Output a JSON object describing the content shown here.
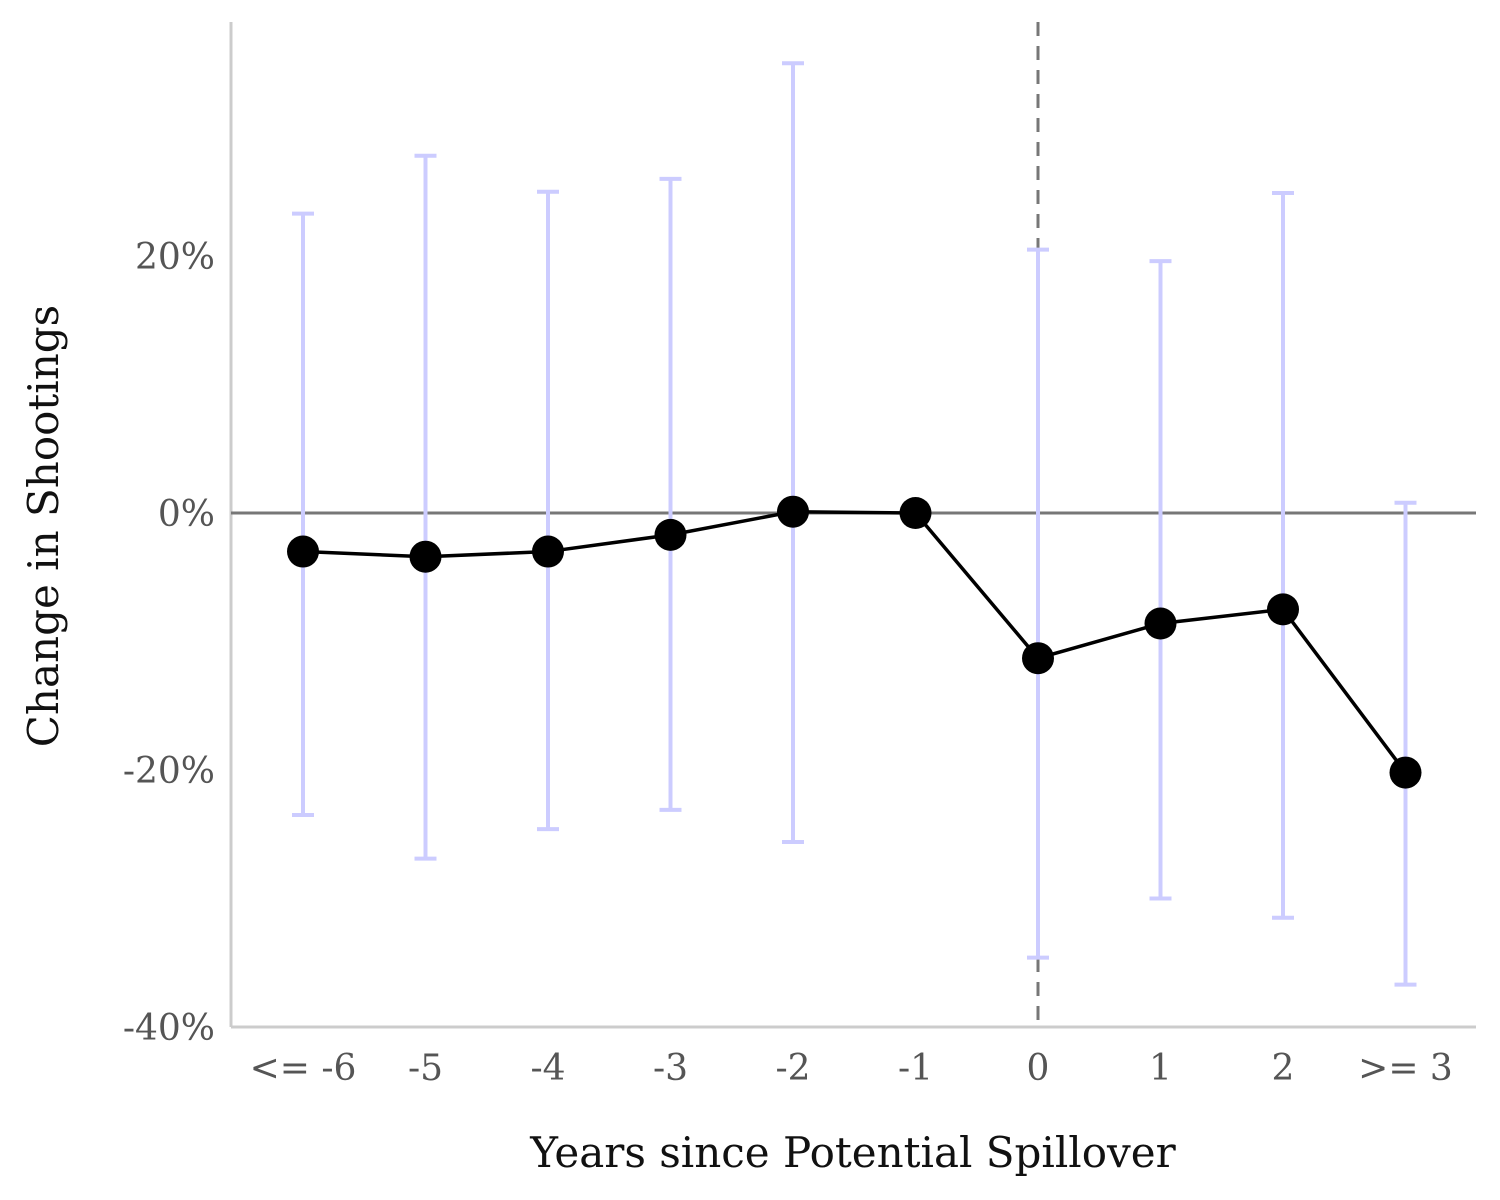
{
  "chart_data": {
    "type": "line",
    "xlabel": "Years since Potential Spillover",
    "ylabel": "Change in Shootings",
    "categories": [
      "<= -6",
      "-5",
      "-4",
      "-3",
      "-2",
      "-1",
      "0",
      "1",
      "2",
      ">= 3"
    ],
    "series": [
      {
        "values": [
          -3.0,
          -3.4,
          -3.0,
          -1.7,
          0.1,
          0.0,
          -11.3,
          -8.6,
          -7.5,
          -20.2
        ],
        "ci_low": [
          -23.5,
          -26.9,
          -24.6,
          -23.1,
          -25.6,
          null,
          -34.6,
          -30.0,
          -31.5,
          -36.7
        ],
        "ci_high": [
          23.3,
          27.8,
          25.0,
          26.0,
          35.0,
          null,
          20.5,
          19.6,
          24.9,
          0.8
        ]
      }
    ],
    "yticks": [
      20,
      0,
      -20,
      -40
    ],
    "ytick_labels": [
      "20%",
      "0%",
      "-20%",
      "-40%"
    ],
    "ylim": [
      -40,
      38
    ],
    "reference_line_y": 0,
    "event_line_category": "0",
    "grid": false,
    "colors": {
      "line": "#000000",
      "points": "#000000",
      "errorbars": "#ccccff",
      "zero_line": "#777777",
      "event_line": "#777777",
      "axis": "#cccccc"
    }
  }
}
